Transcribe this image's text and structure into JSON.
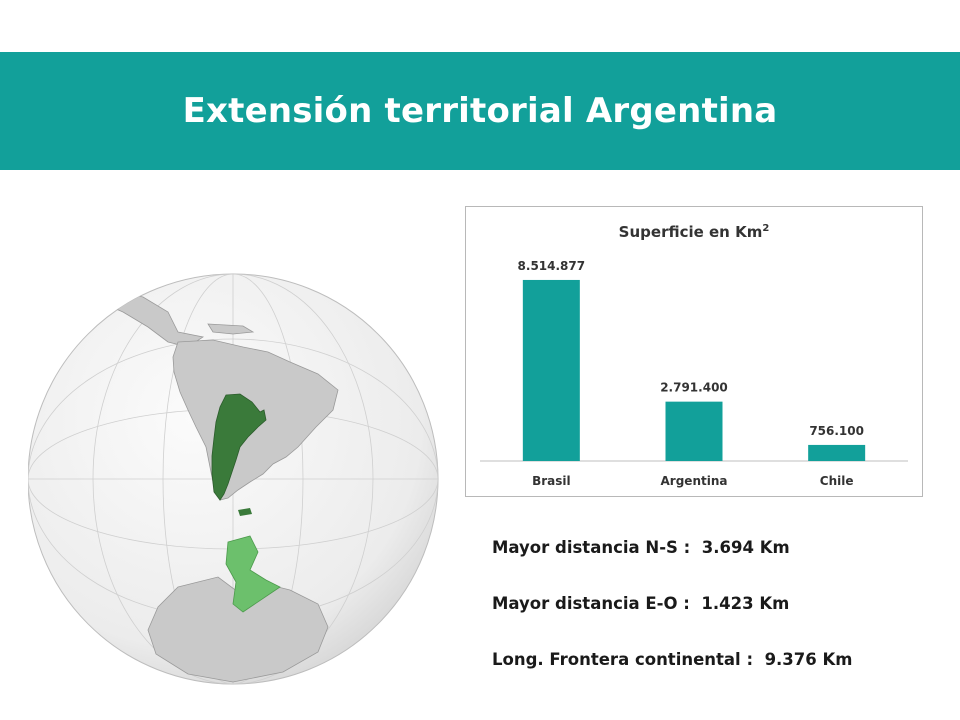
{
  "slide": {
    "title": "Extensión territorial Argentina",
    "band_color": "#12a09a"
  },
  "chart_data": {
    "type": "bar",
    "title": "Superficie en Km",
    "title_superscript": "2",
    "categories": [
      "Brasil",
      "Argentina",
      "Chile"
    ],
    "values": [
      8514877,
      2791400,
      756100
    ],
    "value_labels": [
      "8.514.877",
      "2.791.400",
      "756.100"
    ],
    "bar_color": "#12a09a",
    "xlabel": "",
    "ylabel": "",
    "ylim": [
      0,
      9500000
    ],
    "grid": false,
    "legend": "none"
  },
  "stats": [
    {
      "label": "Mayor distancia N-S :",
      "value": "3.694 Km"
    },
    {
      "label": "Mayor distancia E-O :",
      "value": "1.423 Km"
    },
    {
      "label": "Long.  Frontera continental :",
      "value": "9.376 Km"
    }
  ],
  "map": {
    "ocean_color": "#f2f2f2",
    "land_color": "#c9c9c9",
    "highlight_color": "#3a7a3a",
    "antarctic_claim_color": "#6cc06c"
  }
}
